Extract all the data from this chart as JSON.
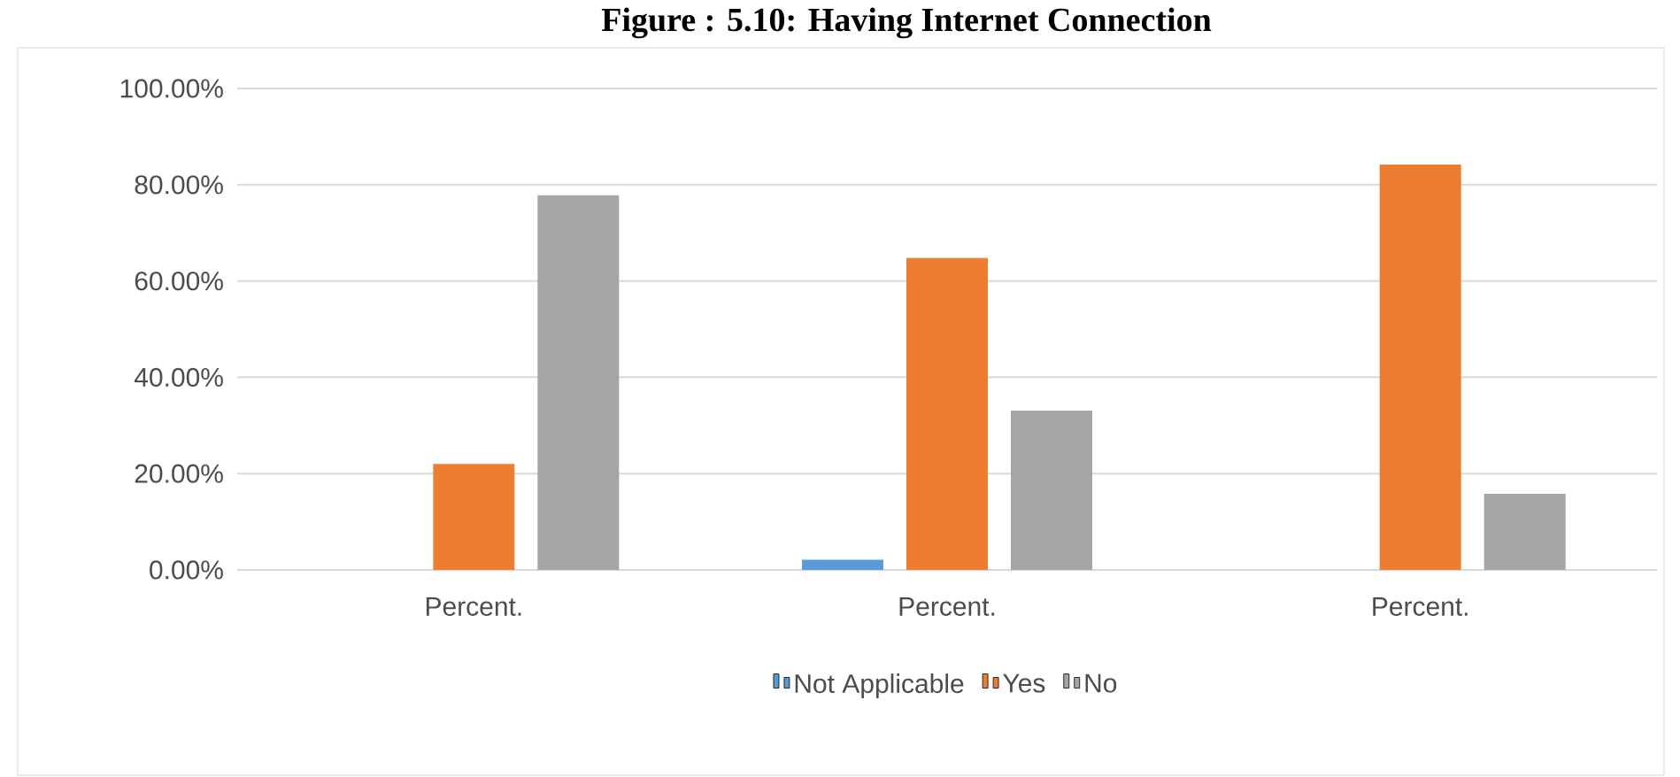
{
  "chart_data": {
    "type": "bar",
    "title": "Figure : 5.10: Having Internet Connection",
    "categories": [
      "Percent.",
      "Percent.",
      "Percent."
    ],
    "series": [
      {
        "name": "Not Applicable",
        "color": "#5b9bd5",
        "values": [
          0,
          2.1,
          0
        ]
      },
      {
        "name": "Yes",
        "color": "#ed7d31",
        "values": [
          22,
          64.8,
          84.2
        ]
      },
      {
        "name": "No",
        "color": "#a5a5a5",
        "values": [
          77.8,
          33.1,
          15.8
        ]
      }
    ],
    "ylim": [
      0,
      100
    ],
    "yticks": [
      {
        "value": 0,
        "label": "0.00%"
      },
      {
        "value": 20,
        "label": "20.00%"
      },
      {
        "value": 40,
        "label": "40.00%"
      },
      {
        "value": 60,
        "label": "60.00%"
      },
      {
        "value": 80,
        "label": "80.00%"
      },
      {
        "value": 100,
        "label": "100.00%"
      }
    ],
    "grid": "y",
    "legend": "bottom"
  }
}
